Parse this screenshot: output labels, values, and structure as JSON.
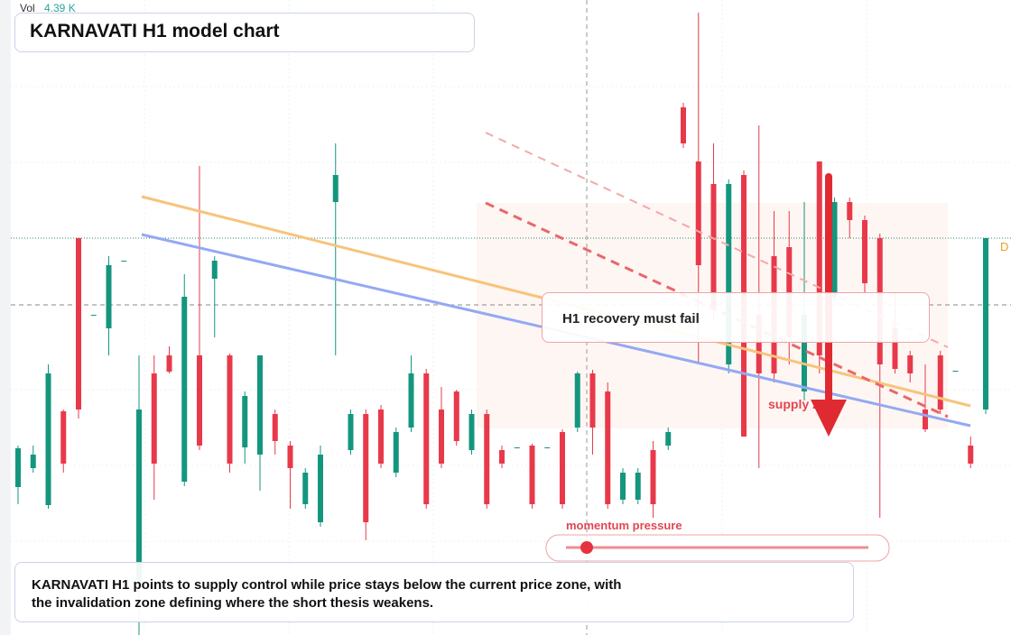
{
  "header": {
    "vol_label": "Vol",
    "vol_value": "4.39 K",
    "title": "KARNAVATI H1 model chart"
  },
  "chart_data": {
    "type": "candlestick",
    "ylim": [
      0,
      704
    ],
    "colors": {
      "up": "#14967e",
      "down": "#e8394a"
    },
    "open": [
      164,
      185,
      144,
      248,
      440,
      355,
      340,
      415,
      60,
      290,
      310,
      170,
      310,
      395,
      310,
      208,
      200,
      245,
      210,
      145,
      125,
      480,
      205,
      245,
      250,
      180,
      230,
      290,
      250,
      270,
      205,
      245,
      205,
      208,
      210,
      208,
      225,
      230,
      290,
      270,
      150,
      150,
      205,
      210,
      585,
      525,
      500,
      300,
      510,
      355,
      420,
      430,
      270,
      525,
      375,
      480,
      460,
      440,
      340,
      310,
      250,
      310,
      293,
      210,
      250
    ],
    "high": [
      210,
      210,
      300,
      250,
      440,
      355,
      420,
      415,
      310,
      310,
      320,
      400,
      520,
      420,
      312,
      270,
      310,
      250,
      215,
      185,
      210,
      545,
      250,
      250,
      255,
      230,
      310,
      295,
      275,
      272,
      250,
      250,
      210,
      208,
      212,
      208,
      228,
      292,
      294,
      280,
      185,
      185,
      215,
      230,
      590,
      690,
      545,
      505,
      515,
      565,
      470,
      470,
      480,
      525,
      485,
      485,
      465,
      445,
      380,
      315,
      300,
      315,
      293,
      220,
      440
    ],
    "low": [
      145,
      180,
      140,
      180,
      240,
      355,
      310,
      415,
      0,
      150,
      290,
      165,
      205,
      330,
      180,
      190,
      160,
      200,
      140,
      140,
      120,
      310,
      200,
      105,
      185,
      175,
      225,
      140,
      185,
      210,
      200,
      140,
      185,
      208,
      140,
      208,
      140,
      225,
      200,
      140,
      145,
      145,
      130,
      205,
      540,
      300,
      350,
      290,
      220,
      185,
      280,
      300,
      260,
      290,
      370,
      440,
      380,
      130,
      290,
      280,
      225,
      245,
      293,
      185,
      245
    ],
    "close": [
      207,
      200,
      290,
      190,
      250,
      355,
      410,
      415,
      250,
      190,
      292,
      375,
      210,
      415,
      190,
      265,
      310,
      215,
      185,
      180,
      200,
      510,
      245,
      125,
      190,
      225,
      290,
      145,
      190,
      215,
      245,
      145,
      190,
      208,
      145,
      208,
      145,
      290,
      230,
      145,
      180,
      180,
      145,
      225,
      545,
      410,
      360,
      500,
      220,
      290,
      290,
      330,
      355,
      310,
      480,
      460,
      390,
      300,
      295,
      290,
      228,
      250,
      293,
      190,
      440
    ]
  },
  "annotations": {
    "callout": "H1 recovery must fail",
    "zone_label": "supply zone",
    "slider_label": "momentum pressure",
    "edge_tag": "D"
  },
  "footer": {
    "lines": [
      "KARNAVATI H1 points to supply control while price stays below the current price zone, with",
      "the invalidation zone defining where the short thesis weakens."
    ]
  }
}
